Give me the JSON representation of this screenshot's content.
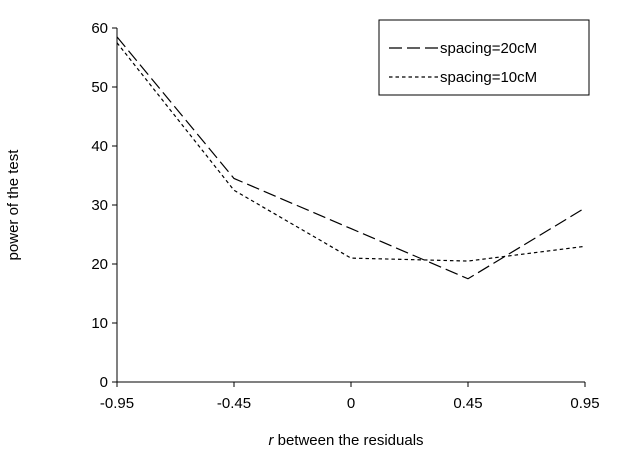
{
  "chart_data": {
    "type": "line",
    "title": "",
    "xlabel_italic": "r",
    "xlabel_rest": " between the residuals",
    "ylabel": "power of the test",
    "x_ticks": [
      "-0.95",
      "-0.45",
      "0",
      "0.45",
      "0.95"
    ],
    "x": [
      -0.95,
      -0.45,
      0,
      0.45,
      0.95
    ],
    "y_ticks": [
      "0",
      "10",
      "20",
      "30",
      "40",
      "50",
      "60"
    ],
    "ylim": [
      0,
      60
    ],
    "grid": false,
    "legend_position": "top-right",
    "series": [
      {
        "name": "spacing=20cM",
        "values": [
          58.5,
          34.5,
          26,
          17.5,
          29.5
        ],
        "dash": "long-dash",
        "color": "#000000"
      },
      {
        "name": "spacing=10cM",
        "values": [
          57.5,
          32.5,
          21,
          20.5,
          23
        ],
        "dash": "short-dash",
        "color": "#000000"
      }
    ]
  }
}
